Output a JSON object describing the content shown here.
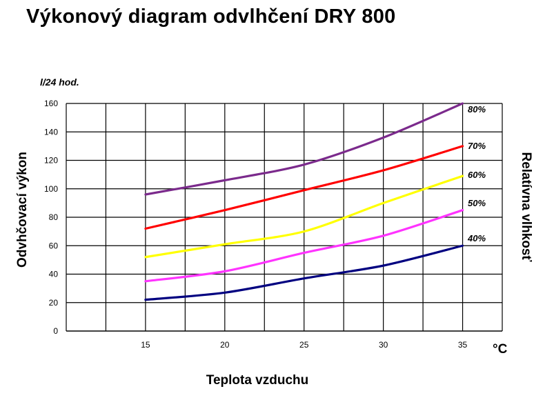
{
  "title": "Výkonový diagram odvlhčení DRY 800",
  "chart_data": {
    "type": "line",
    "y_unit": "l/24 hod.",
    "ylabel": "Odvhčovací výkon",
    "xlabel": "Teplota vzduchu",
    "x_unit": "°C",
    "right_label": "Relatívna vlhkosť",
    "x": [
      15,
      20,
      25,
      30,
      35
    ],
    "xlim": [
      10,
      37.5
    ],
    "ylim": [
      0,
      160
    ],
    "yticks": [
      0,
      20,
      40,
      60,
      80,
      100,
      120,
      140,
      160
    ],
    "xticks": [
      15,
      20,
      25,
      30,
      35
    ],
    "grid": true,
    "series": [
      {
        "name": "80%",
        "color": "#7b2a8c",
        "values": [
          96,
          106,
          117,
          136,
          160
        ]
      },
      {
        "name": "70%",
        "color": "#ff0000",
        "values": [
          72,
          85,
          99,
          113,
          130
        ]
      },
      {
        "name": "60%",
        "color": "#ffff00",
        "values": [
          52,
          61,
          70,
          90,
          109
        ]
      },
      {
        "name": "50%",
        "color": "#ff33ff",
        "values": [
          35,
          42,
          55,
          67,
          85
        ]
      },
      {
        "name": "40%",
        "color": "#000080",
        "values": [
          22,
          27,
          37,
          46,
          60
        ]
      }
    ]
  }
}
